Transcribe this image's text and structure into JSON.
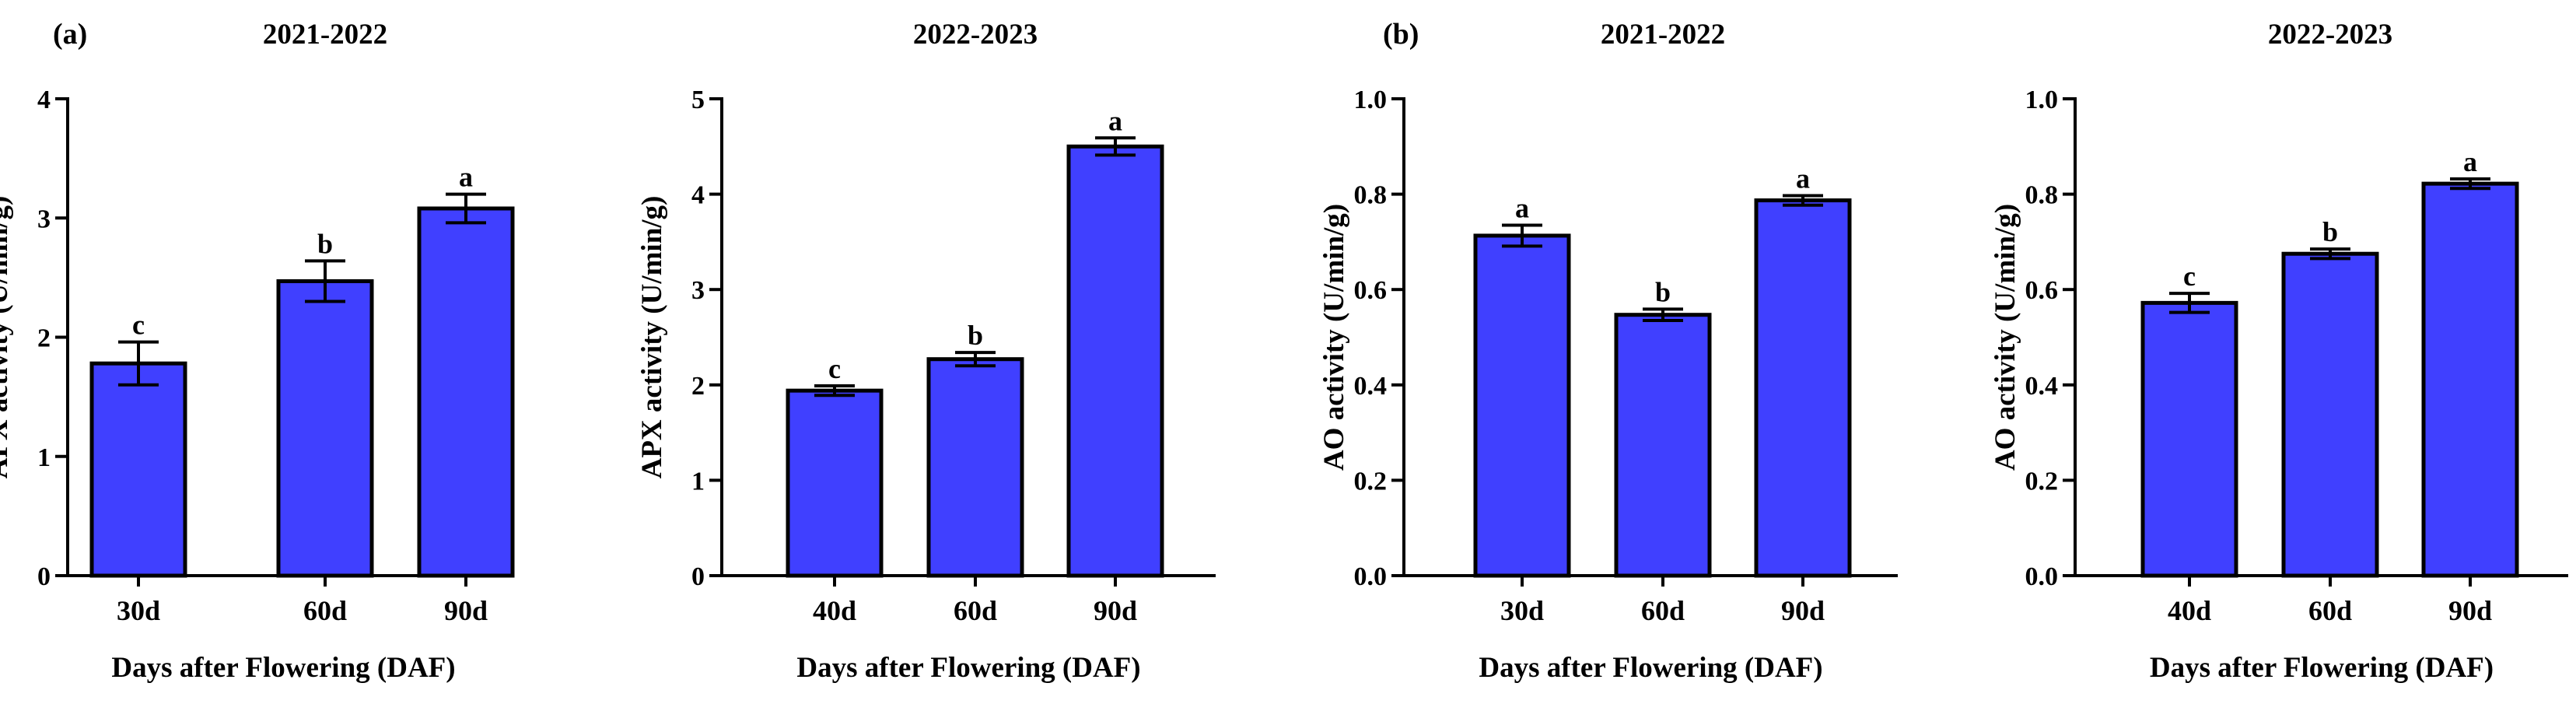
{
  "figure": {
    "panel_labels": [
      "(a)",
      "(b)"
    ]
  },
  "colors": {
    "bar_fill": "#4040ff",
    "bar_stroke": "#000000"
  },
  "chart_data": [
    {
      "type": "bar",
      "title": "2021-2022",
      "xlabel": "Days after Flowering (DAF)",
      "ylabel": "APX activity (U/min/g)",
      "categories": [
        "30d",
        "60d",
        "90d"
      ],
      "values": [
        1.78,
        2.47,
        3.08
      ],
      "errors": [
        0.18,
        0.17,
        0.12
      ],
      "letters": [
        "c",
        "b",
        "a"
      ],
      "ylim": [
        0,
        4
      ],
      "yticks": [
        0,
        1,
        2,
        3,
        4
      ],
      "ytick_labels": [
        "0",
        "1",
        "2",
        "3",
        "4"
      ]
    },
    {
      "type": "bar",
      "title": "2022-2023",
      "xlabel": "Days after Flowering (DAF)",
      "ylabel": "APX activity (U/min/g)",
      "categories": [
        "40d",
        "60d",
        "90d"
      ],
      "values": [
        1.94,
        2.27,
        4.5
      ],
      "errors": [
        0.05,
        0.07,
        0.09
      ],
      "letters": [
        "c",
        "b",
        "a"
      ],
      "ylim": [
        0,
        5
      ],
      "yticks": [
        0,
        1,
        2,
        3,
        4,
        5
      ],
      "ytick_labels": [
        "0",
        "1",
        "2",
        "3",
        "4",
        "5"
      ]
    },
    {
      "type": "bar",
      "title": "2021-2022",
      "xlabel": "Days after Flowering (DAF)",
      "ylabel": "AO activity (U/min/g)",
      "categories": [
        "30d",
        "60d",
        "90d"
      ],
      "values": [
        0.713,
        0.547,
        0.787
      ],
      "errors": [
        0.022,
        0.012,
        0.01
      ],
      "letters": [
        "a",
        "b",
        "a"
      ],
      "ylim": [
        0,
        1
      ],
      "yticks": [
        0,
        0.2,
        0.4,
        0.6,
        0.8,
        1.0
      ],
      "ytick_labels": [
        "0.0",
        "0.2",
        "0.4",
        "0.6",
        "0.8",
        "1.0"
      ]
    },
    {
      "type": "bar",
      "title": "2022-2023",
      "xlabel": "Days after Flowering (DAF)",
      "ylabel": "AO activity (U/min/g)",
      "categories": [
        "40d",
        "60d",
        "90d"
      ],
      "values": [
        0.572,
        0.675,
        0.822
      ],
      "errors": [
        0.02,
        0.01,
        0.01
      ],
      "letters": [
        "c",
        "b",
        "a"
      ],
      "ylim": [
        0,
        1
      ],
      "yticks": [
        0,
        0.2,
        0.4,
        0.6,
        0.8,
        1.0
      ],
      "ytick_labels": [
        "0.0",
        "0.2",
        "0.4",
        "0.6",
        "0.8",
        "1.0"
      ]
    }
  ]
}
